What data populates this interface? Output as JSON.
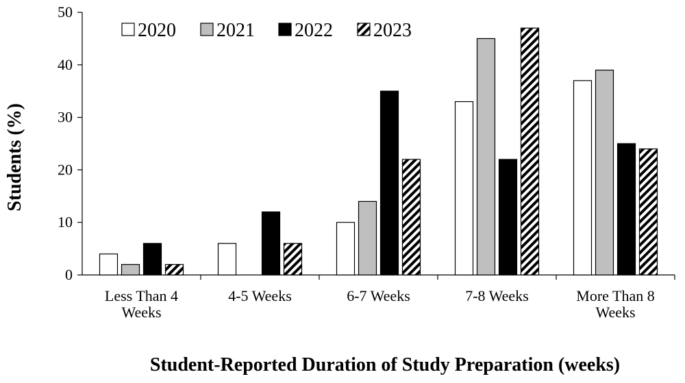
{
  "chart_data": {
    "type": "bar",
    "title": "",
    "xlabel": "Student-Reported Duration of Study Preparation (weeks)",
    "ylabel": "Students (%)",
    "ylim": [
      0,
      50
    ],
    "yticks": [
      0,
      10,
      20,
      30,
      40,
      50
    ],
    "grid": false,
    "legend_position": "top",
    "categories": [
      [
        "Less Than 4",
        "Weeks"
      ],
      [
        "4-5 Weeks"
      ],
      [
        "6-7 Weeks"
      ],
      [
        "7-8 Weeks"
      ],
      [
        "More Than 8",
        "Weeks"
      ]
    ],
    "series": [
      {
        "name": "2020",
        "fill": "#ffffff",
        "pattern": "none",
        "values": [
          4,
          6,
          10,
          33,
          37
        ]
      },
      {
        "name": "2021",
        "fill": "#bfbfbf",
        "pattern": "none",
        "values": [
          2,
          0,
          14,
          45,
          39
        ]
      },
      {
        "name": "2022",
        "fill": "#000000",
        "pattern": "none",
        "values": [
          6,
          12,
          35,
          22,
          25
        ]
      },
      {
        "name": "2023",
        "fill": "#ffffff",
        "pattern": "diagonal-hatch",
        "values": [
          2,
          6,
          22,
          47,
          24
        ]
      }
    ]
  }
}
